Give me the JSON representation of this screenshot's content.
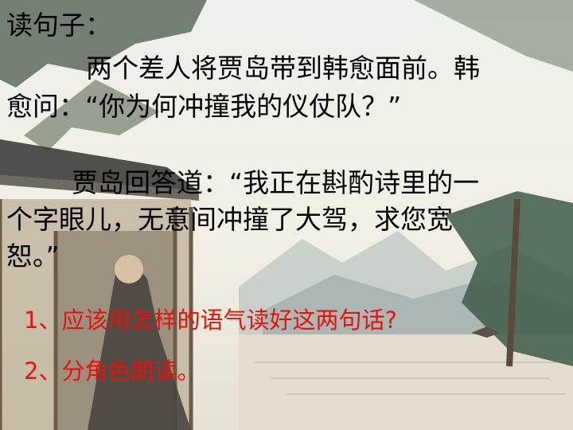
{
  "slide": {
    "heading": "读句子：",
    "para1": {
      "line1": "两个差人将贾岛带到韩愈面前。韩",
      "line2": "愈问：“你为何冲撞我的仪仗队？”"
    },
    "para2": {
      "line1": "贾岛回答道：“我正在斟酌诗里的一",
      "line2": "个字眼儿，无意间冲撞了大驾，求您宽",
      "line3": "恕。”"
    },
    "questions": [
      "1、应该用怎样的语气读好这两句话?",
      "2、分角色朗读。"
    ]
  },
  "colors": {
    "text": "#000000",
    "question": "#e8120c"
  }
}
